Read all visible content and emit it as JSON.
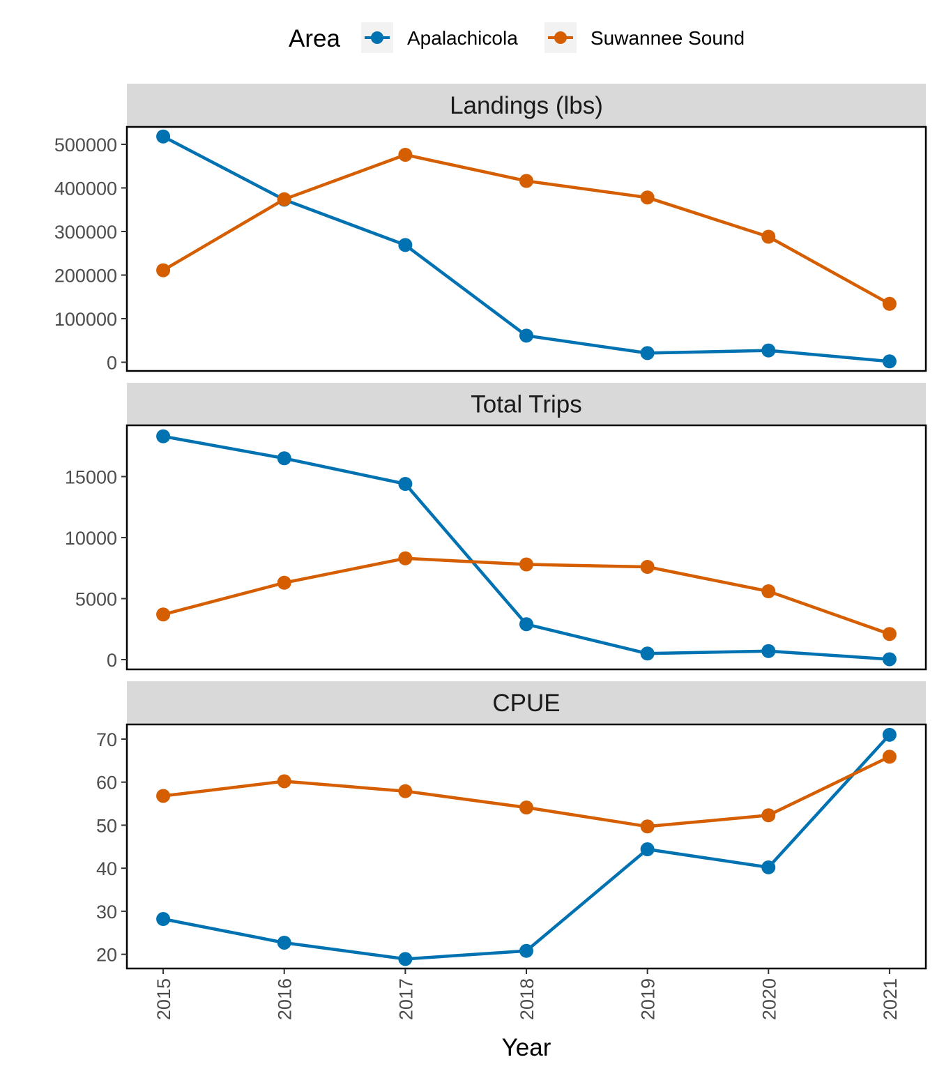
{
  "chart_data": {
    "type": "line",
    "facet_layout": "vertical",
    "xlabel": "Year",
    "x": [
      2015,
      2016,
      2017,
      2018,
      2019,
      2020,
      2021
    ],
    "legend": {
      "title": "Area",
      "position": "top",
      "entries": [
        "Apalachicola",
        "Suwannee Sound"
      ]
    },
    "colors": {
      "Apalachicola": "#0072B2",
      "Suwannee Sound": "#D55E00"
    },
    "grid": false,
    "panels": [
      {
        "title": "Landings (lbs)",
        "ylim": [
          -20000,
          540000
        ],
        "yticks": [
          0,
          100000,
          200000,
          300000,
          400000,
          500000
        ],
        "ytick_labels": [
          "0",
          "100000",
          "200000",
          "300000",
          "400000",
          "500000"
        ],
        "series": [
          {
            "name": "Apalachicola",
            "values": [
              518000,
              373000,
              269000,
              61000,
              21000,
              27000,
              2000
            ]
          },
          {
            "name": "Suwannee Sound",
            "values": [
              211000,
              374000,
              476000,
              416000,
              378000,
              288000,
              134000
            ]
          }
        ]
      },
      {
        "title": "Total Trips",
        "ylim": [
          -800,
          19200
        ],
        "yticks": [
          0,
          5000,
          10000,
          15000
        ],
        "ytick_labels": [
          "0",
          "5000",
          "10000",
          "15000"
        ],
        "series": [
          {
            "name": "Apalachicola",
            "values": [
              18300,
              16500,
              14400,
              2900,
              500,
              700,
              30
            ]
          },
          {
            "name": "Suwannee Sound",
            "values": [
              3700,
              6300,
              8300,
              7800,
              7600,
              5600,
              2100
            ]
          }
        ]
      },
      {
        "title": "CPUE",
        "ylim": [
          16.7,
          73.4
        ],
        "yticks": [
          20,
          30,
          40,
          50,
          60,
          70
        ],
        "ytick_labels": [
          "20",
          "30",
          "40",
          "50",
          "60",
          "70"
        ],
        "series": [
          {
            "name": "Apalachicola",
            "values": [
              28.2,
              22.7,
              18.9,
              20.8,
              44.4,
              40.2,
              71.0
            ]
          },
          {
            "name": "Suwannee Sound",
            "values": [
              56.8,
              60.2,
              57.9,
              54.1,
              49.7,
              52.3,
              65.9
            ]
          }
        ]
      }
    ]
  }
}
